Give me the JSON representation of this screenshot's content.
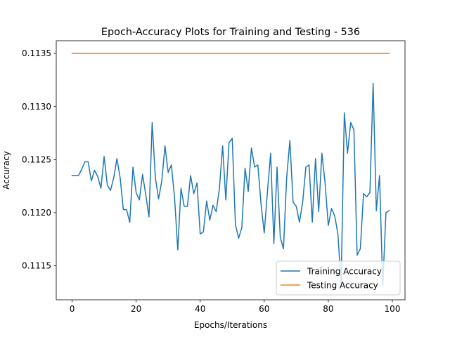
{
  "chart_data": {
    "type": "line",
    "title": "Epoch-Accuracy Plots for Training and Testing - 536",
    "xlabel": "Epochs/Iterations",
    "ylabel": "Accuracy",
    "xlim": [
      -4.95,
      103.95
    ],
    "ylim": [
      0.11118,
      0.11362
    ],
    "xticks": [
      0,
      20,
      40,
      60,
      80,
      100
    ],
    "yticks": [
      0.1115,
      0.112,
      0.1125,
      0.113,
      0.1135
    ],
    "ytick_labels": [
      "0.1115",
      "0.1120",
      "0.1125",
      "0.1130",
      "0.1135"
    ],
    "legend_position": "bottom-right",
    "series": [
      {
        "name": "Training Accuracy",
        "color": "#1f77b4",
        "x": [
          0,
          1,
          2,
          3,
          4,
          5,
          6,
          7,
          8,
          9,
          10,
          11,
          12,
          13,
          14,
          15,
          16,
          17,
          18,
          19,
          20,
          21,
          22,
          23,
          24,
          25,
          26,
          27,
          28,
          29,
          30,
          31,
          32,
          33,
          34,
          35,
          36,
          37,
          38,
          39,
          40,
          41,
          42,
          43,
          44,
          45,
          46,
          47,
          48,
          49,
          50,
          51,
          52,
          53,
          54,
          55,
          56,
          57,
          58,
          59,
          60,
          61,
          62,
          63,
          64,
          65,
          66,
          67,
          68,
          69,
          70,
          71,
          72,
          73,
          74,
          75,
          76,
          77,
          78,
          79,
          80,
          81,
          82,
          83,
          84,
          85,
          86,
          87,
          88,
          89,
          90,
          91,
          92,
          93,
          94,
          95,
          96,
          97,
          98,
          99
        ],
        "values": [
          0.11235,
          0.11235,
          0.11235,
          0.11241,
          0.11248,
          0.11248,
          0.1123,
          0.1124,
          0.11234,
          0.11223,
          0.11253,
          0.11226,
          0.11221,
          0.11233,
          0.11251,
          0.11233,
          0.11203,
          0.11203,
          0.11191,
          0.11243,
          0.11219,
          0.11212,
          0.11236,
          0.11217,
          0.11196,
          0.11285,
          0.11233,
          0.11213,
          0.1123,
          0.11263,
          0.11238,
          0.11245,
          0.11214,
          0.11165,
          0.11223,
          0.11206,
          0.11206,
          0.11235,
          0.11218,
          0.11228,
          0.1118,
          0.11182,
          0.11211,
          0.11193,
          0.11207,
          0.11201,
          0.11223,
          0.11263,
          0.11212,
          0.11266,
          0.1127,
          0.11189,
          0.11176,
          0.11186,
          0.11242,
          0.1122,
          0.11261,
          0.11243,
          0.11245,
          0.11208,
          0.11181,
          0.1122,
          0.11256,
          0.11171,
          0.11243,
          0.11177,
          0.11166,
          0.11233,
          0.11268,
          0.1121,
          0.11206,
          0.11191,
          0.1121,
          0.11243,
          0.11245,
          0.11191,
          0.11251,
          0.11201,
          0.11256,
          0.11228,
          0.11188,
          0.11204,
          0.11197,
          0.1118,
          0.11133,
          0.11294,
          0.11256,
          0.11285,
          0.11278,
          0.1116,
          0.11166,
          0.11218,
          0.11215,
          0.11219,
          0.11322,
          0.11202,
          0.11235,
          0.11131,
          0.112,
          0.11202
        ]
      },
      {
        "name": "Testing Accuracy",
        "color": "#ff7f0e",
        "x": [
          0,
          99
        ],
        "values": [
          0.1135,
          0.1135
        ]
      }
    ]
  }
}
